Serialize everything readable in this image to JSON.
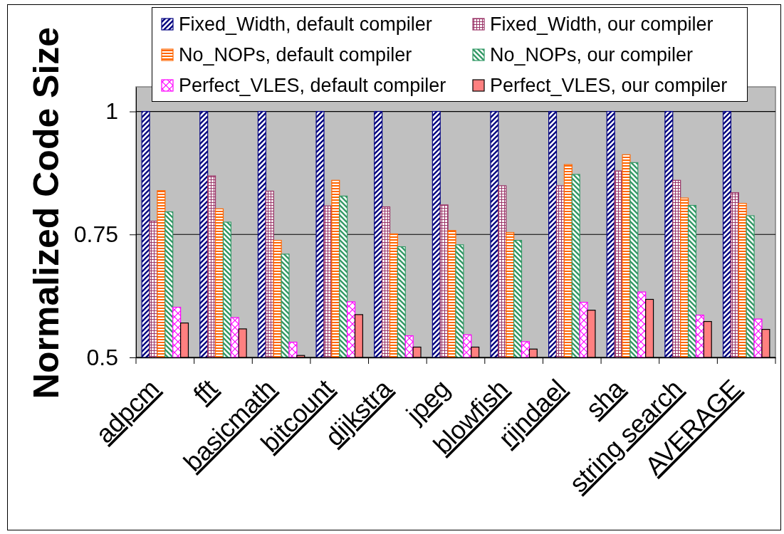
{
  "chart_data": {
    "type": "bar",
    "ylabel": "Normalized Code Size",
    "categories": [
      "adpcm",
      "fft",
      "basicmath",
      "bitcount",
      "dijkstra",
      "jpeg",
      "blowfish",
      "rijndael",
      "sha",
      "string search",
      "AVERAGE"
    ],
    "series": [
      {
        "name": "Fixed_Width, default compiler",
        "color": "#000080",
        "values": [
          1,
          1,
          1,
          1,
          1,
          1,
          1,
          1,
          1,
          1,
          1
        ]
      },
      {
        "name": "Fixed_Width, our compiler",
        "color": "#993366",
        "values": [
          0.777,
          0.869,
          0.838,
          0.808,
          0.806,
          0.81,
          0.849,
          0.849,
          0.879,
          0.86,
          0.835
        ]
      },
      {
        "name": "No_NOPs, default compiler",
        "color": "#ff6600",
        "values": [
          0.839,
          0.802,
          0.738,
          0.86,
          0.751,
          0.758,
          0.754,
          0.892,
          0.912,
          0.824,
          0.813
        ]
      },
      {
        "name": "No_NOPs, our compiler",
        "color": "#339966",
        "values": [
          0.796,
          0.775,
          0.71,
          0.828,
          0.725,
          0.729,
          0.738,
          0.872,
          0.896,
          0.809,
          0.788
        ]
      },
      {
        "name": "Perfect_VLES, default compiler",
        "color": "#ff00ff",
        "values": [
          0.602,
          0.581,
          0.531,
          0.613,
          0.544,
          0.546,
          0.532,
          0.612,
          0.633,
          0.586,
          0.578
        ]
      },
      {
        "name": "Perfect_VLES, our compiler",
        "color": "#ff8080",
        "values": [
          0.57,
          0.558,
          0.504,
          0.587,
          0.521,
          0.521,
          0.517,
          0.596,
          0.618,
          0.573,
          0.557
        ]
      }
    ],
    "ylim": [
      0.5,
      1.05
    ],
    "yticks": [
      0.5,
      0.75,
      1
    ],
    "grid": "y",
    "legend": "top"
  }
}
